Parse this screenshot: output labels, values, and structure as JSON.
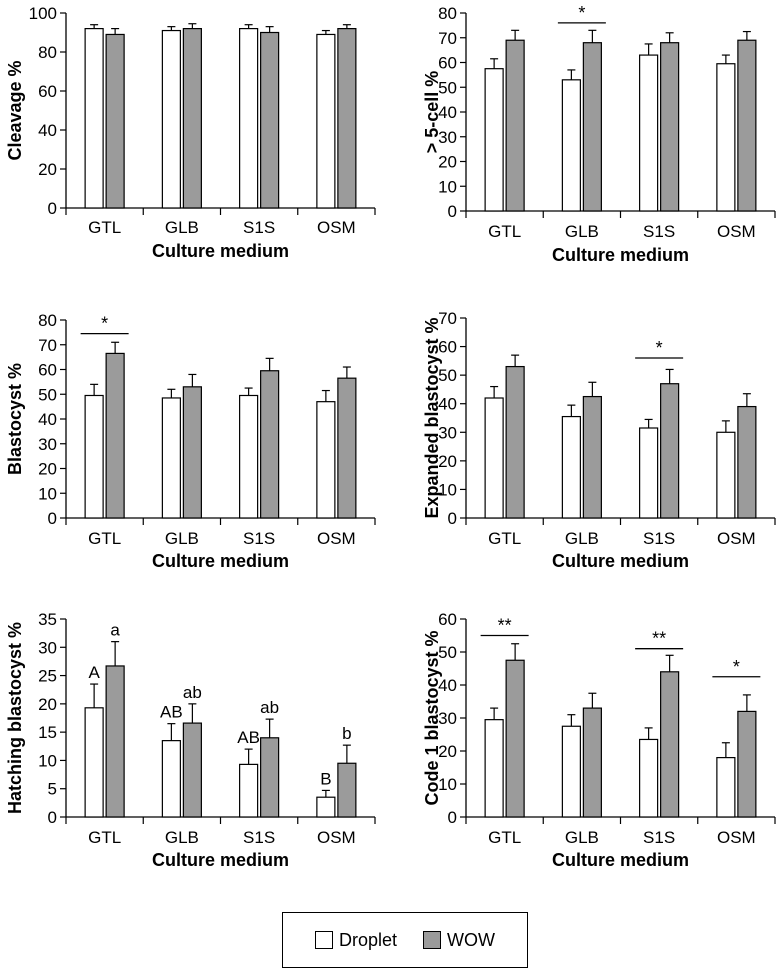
{
  "legend": {
    "droplet_label": "Droplet",
    "wow_label": "WOW"
  },
  "colors": {
    "droplet": "#ffffff",
    "wow": "#9b9b9b",
    "stroke": "#000000"
  },
  "chart_data": [
    {
      "type": "bar",
      "categories": [
        "GTL",
        "GLB",
        "S1S",
        "OSM"
      ],
      "xlabel": "Culture medium",
      "ylabel": "Cleavage %",
      "ylim": [
        0,
        100
      ],
      "yticks": [
        0,
        20,
        40,
        60,
        80,
        100
      ],
      "series": [
        {
          "name": "Droplet",
          "values": [
            92,
            91,
            92,
            89
          ],
          "errors": [
            2,
            2,
            2,
            2
          ]
        },
        {
          "name": "WOW",
          "values": [
            89,
            92,
            90,
            92
          ],
          "errors": [
            3,
            2.5,
            3,
            2
          ]
        }
      ],
      "significance": [],
      "bar_labels": []
    },
    {
      "type": "bar",
      "categories": [
        "GTL",
        "GLB",
        "S1S",
        "OSM"
      ],
      "xlabel": "Culture medium",
      "ylabel": "> 5-cell %",
      "ylim": [
        0,
        80
      ],
      "yticks": [
        0,
        10,
        20,
        30,
        40,
        50,
        60,
        70,
        80
      ],
      "series": [
        {
          "name": "Droplet",
          "values": [
            57.5,
            53,
            63,
            59.5
          ],
          "errors": [
            4,
            4,
            4.5,
            3.5
          ]
        },
        {
          "name": "WOW",
          "values": [
            69,
            68,
            68,
            69
          ],
          "errors": [
            4,
            5,
            4,
            3.5
          ]
        }
      ],
      "significance": [
        {
          "category": "GLB",
          "label": "*",
          "y": 76
        }
      ],
      "bar_labels": []
    },
    {
      "type": "bar",
      "categories": [
        "GTL",
        "GLB",
        "S1S",
        "OSM"
      ],
      "xlabel": "Culture medium",
      "ylabel": "Blastocyst %",
      "ylim": [
        0,
        80
      ],
      "yticks": [
        0,
        10,
        20,
        30,
        40,
        50,
        60,
        70,
        80
      ],
      "series": [
        {
          "name": "Droplet",
          "values": [
            49.5,
            48.5,
            49.5,
            47
          ],
          "errors": [
            4.5,
            3.5,
            3,
            4.5
          ]
        },
        {
          "name": "WOW",
          "values": [
            66.5,
            53,
            59.5,
            56.5
          ],
          "errors": [
            4.5,
            5,
            5,
            4.5
          ]
        }
      ],
      "significance": [
        {
          "category": "GTL",
          "label": "*",
          "y": 74.5
        }
      ],
      "bar_labels": []
    },
    {
      "type": "bar",
      "categories": [
        "GTL",
        "GLB",
        "S1S",
        "OSM"
      ],
      "xlabel": "Culture medium",
      "ylabel": "Expanded blastocyst %",
      "ylim": [
        0,
        70
      ],
      "yticks": [
        0,
        10,
        20,
        30,
        40,
        50,
        60,
        70
      ],
      "series": [
        {
          "name": "Droplet",
          "values": [
            42,
            35.5,
            31.5,
            30
          ],
          "errors": [
            4,
            4,
            3,
            4
          ]
        },
        {
          "name": "WOW",
          "values": [
            53,
            42.5,
            47,
            39
          ],
          "errors": [
            4,
            5,
            5,
            4.5
          ]
        }
      ],
      "significance": [
        {
          "category": "S1S",
          "label": "*",
          "y": 56
        }
      ],
      "bar_labels": []
    },
    {
      "type": "bar",
      "categories": [
        "GTL",
        "GLB",
        "S1S",
        "OSM"
      ],
      "xlabel": "Culture medium",
      "ylabel": "Hatching blastocyst %",
      "ylim": [
        0,
        35
      ],
      "yticks": [
        0,
        5,
        10,
        15,
        20,
        25,
        30,
        35
      ],
      "series": [
        {
          "name": "Droplet",
          "values": [
            19.3,
            13.5,
            9.3,
            3.5
          ],
          "errors": [
            4.2,
            3,
            2.7,
            1.2
          ]
        },
        {
          "name": "WOW",
          "values": [
            26.7,
            16.6,
            14,
            9.5
          ],
          "errors": [
            4.3,
            3.4,
            3.3,
            3.2
          ]
        }
      ],
      "significance": [],
      "bar_labels": [
        {
          "category": "GTL",
          "series": 0,
          "label": "A"
        },
        {
          "category": "GTL",
          "series": 1,
          "label": "a"
        },
        {
          "category": "GLB",
          "series": 0,
          "label": "AB"
        },
        {
          "category": "GLB",
          "series": 1,
          "label": "ab"
        },
        {
          "category": "S1S",
          "series": 0,
          "label": "AB"
        },
        {
          "category": "S1S",
          "series": 1,
          "label": "ab"
        },
        {
          "category": "OSM",
          "series": 0,
          "label": "B"
        },
        {
          "category": "OSM",
          "series": 1,
          "label": "b"
        }
      ]
    },
    {
      "type": "bar",
      "categories": [
        "GTL",
        "GLB",
        "S1S",
        "OSM"
      ],
      "xlabel": "Culture medium",
      "ylabel": "Code 1 blastocyst %",
      "ylim": [
        0,
        60
      ],
      "yticks": [
        0,
        10,
        20,
        30,
        40,
        50,
        60
      ],
      "series": [
        {
          "name": "Droplet",
          "values": [
            29.5,
            27.5,
            23.5,
            18
          ],
          "errors": [
            3.5,
            3.5,
            3.5,
            4.5
          ]
        },
        {
          "name": "WOW",
          "values": [
            47.5,
            33,
            44,
            32
          ],
          "errors": [
            5,
            4.5,
            5,
            5
          ]
        }
      ],
      "significance": [
        {
          "category": "GTL",
          "label": "**",
          "y": 55
        },
        {
          "category": "S1S",
          "label": "**",
          "y": 51
        },
        {
          "category": "OSM",
          "label": "*",
          "y": 42.5
        }
      ],
      "bar_labels": []
    }
  ]
}
